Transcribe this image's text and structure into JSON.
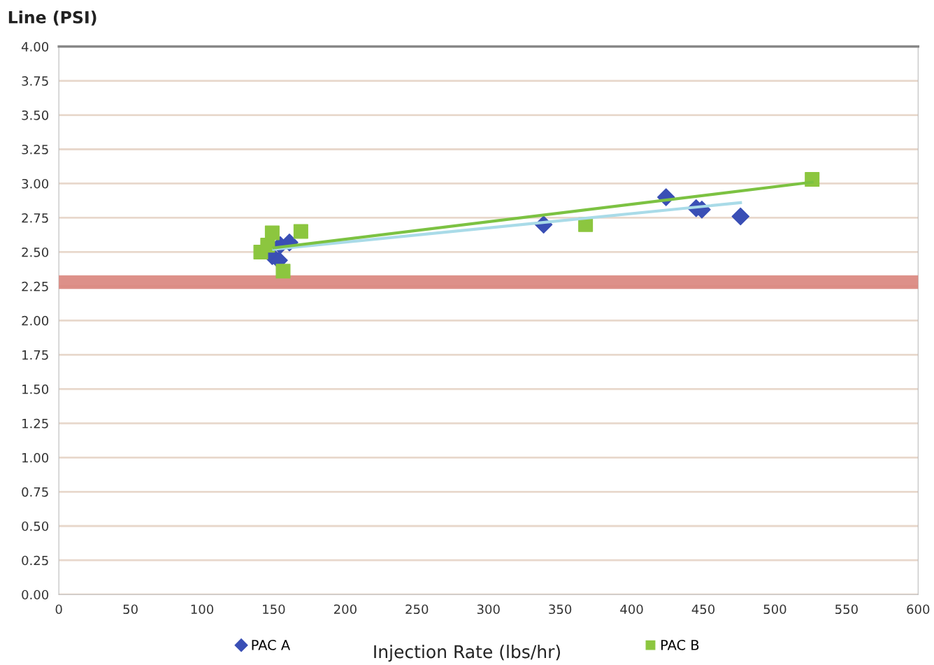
{
  "chart_data": {
    "type": "scatter",
    "xlabel": "Injection Rate (lbs/hr)",
    "ylabel": "Line (PSI)",
    "xlim": [
      0,
      600
    ],
    "xticks": [
      0,
      50,
      100,
      150,
      200,
      250,
      300,
      350,
      400,
      450,
      500,
      550,
      600
    ],
    "ylim": [
      0,
      4
    ],
    "yticks": [
      {
        "value": 0,
        "label": "0.00"
      },
      {
        "value": 0.25,
        "label": "0.25"
      },
      {
        "value": 0.5,
        "label": "0.50"
      },
      {
        "value": 0.75,
        "label": "0.75"
      },
      {
        "value": 1,
        "label": "1.00"
      },
      {
        "value": 1.25,
        "label": "1.25"
      },
      {
        "value": 1.5,
        "label": "1.50"
      },
      {
        "value": 1.75,
        "label": "1.75"
      },
      {
        "value": 2,
        "label": "2.00"
      },
      {
        "value": 2.25,
        "label": "2.25"
      },
      {
        "value": 2.5,
        "label": "2.50"
      },
      {
        "value": 2.75,
        "label": "2.75"
      },
      {
        "value": 3,
        "label": "3.00"
      },
      {
        "value": 3.25,
        "label": "3.25"
      },
      {
        "value": 3.5,
        "label": "3.50"
      },
      {
        "value": 3.75,
        "label": "3.75"
      },
      {
        "value": 4,
        "label": "4.00"
      }
    ],
    "grid": "y",
    "legend": "bottom",
    "ref_lines": [
      {
        "axis": "y",
        "value": 2.28,
        "color": "#d9847c"
      }
    ],
    "series": [
      {
        "name": "PAC A",
        "color": "#3a4fb5",
        "marker": "diamond",
        "x": [
          149,
          153.7,
          154.6,
          161,
          338.5,
          424,
          445,
          449,
          476
        ],
        "values": [
          2.47,
          2.44,
          2.55,
          2.57,
          2.7,
          2.9,
          2.82,
          2.81,
          2.76
        ]
      },
      {
        "name": "PAC B",
        "color": "#8cc63f",
        "marker": "square",
        "x": [
          141,
          145.8,
          149,
          156.6,
          169,
          367.8,
          526
        ],
        "values": [
          2.5,
          2.55,
          2.64,
          2.36,
          2.65,
          2.7,
          3.03
        ]
      },
      {
        "type": "line",
        "color": "#a9dbe8",
        "x": [
          150,
          476
        ],
        "values": [
          2.52,
          2.86
        ]
      },
      {
        "type": "line",
        "color": "#7cc242",
        "x": [
          150,
          526
        ],
        "values": [
          2.53,
          3.01
        ]
      }
    ]
  }
}
